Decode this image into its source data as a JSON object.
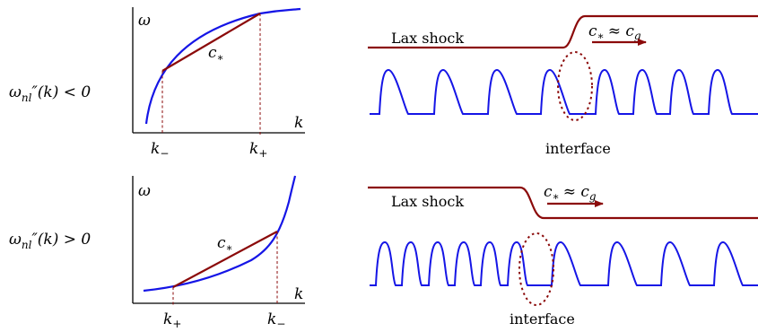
{
  "rows": [
    {
      "condition_prefix": "ω",
      "condition_sub": "nl",
      "condition_suffix": "″(k) < 0",
      "omega_label": "ω",
      "k_label": "k",
      "chord_label": "c",
      "chord_sub": "∗",
      "tick_left_base": "k",
      "tick_left_sub": "−",
      "tick_right_base": "k",
      "tick_right_sub": "+",
      "shock_label": "Lax shock",
      "speed_label_base": "c",
      "speed_label_sub": "∗",
      "speed_approx": "≈ c",
      "speed_sub": "g",
      "interface_label": "interface"
    },
    {
      "condition_prefix": "ω",
      "condition_sub": "nl",
      "condition_suffix": "″(k) > 0",
      "omega_label": "ω",
      "k_label": "k",
      "chord_label": "c",
      "chord_sub": "∗",
      "tick_left_base": "k",
      "tick_left_sub": "+",
      "tick_right_base": "k",
      "tick_right_sub": "−",
      "shock_label": "Lax shock",
      "speed_label_base": "c",
      "speed_label_sub": "∗",
      "speed_approx": "≈ c",
      "speed_sub": "g",
      "interface_label": "interface"
    }
  ],
  "colors": {
    "curve": "#1515e6",
    "chord": "#8b0a0a",
    "shock": "#8b0a0a",
    "wave": "#1515e6"
  }
}
